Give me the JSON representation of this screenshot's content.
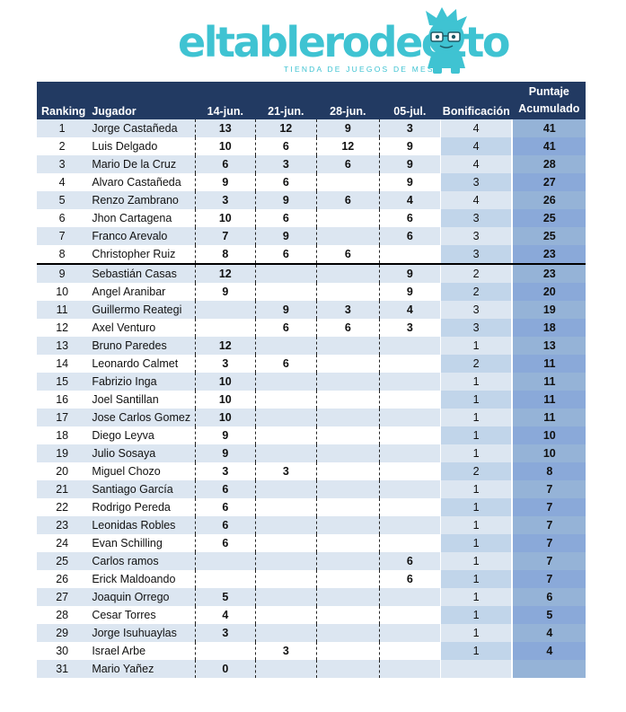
{
  "brand": {
    "name": "eltablerodeotto",
    "tagline": "TIENDA DE JUEGOS DE MESA",
    "color": "#3fc3d2"
  },
  "table": {
    "headers": {
      "ranking": "Ranking",
      "player": "Jugador",
      "d1": "14-jun.",
      "d2": "21-jun.",
      "d3": "28-jun.",
      "d4": "05-jul.",
      "bonus": "Bonificación",
      "total_line1": "Puntaje",
      "total_line2": "Acumulado"
    },
    "rows": [
      {
        "rank": "1",
        "name": "Jorge Castañeda",
        "d1": "13",
        "d2": "12",
        "d3": "9",
        "d4": "3",
        "bonus": "4",
        "total": "41"
      },
      {
        "rank": "2",
        "name": "Luis Delgado",
        "d1": "10",
        "d2": "6",
        "d3": "12",
        "d4": "9",
        "bonus": "4",
        "total": "41"
      },
      {
        "rank": "3",
        "name": "Mario De la Cruz",
        "d1": "6",
        "d2": "3",
        "d3": "6",
        "d4": "9",
        "bonus": "4",
        "total": "28"
      },
      {
        "rank": "4",
        "name": "Alvaro Castañeda",
        "d1": "9",
        "d2": "6",
        "d3": "",
        "d4": "9",
        "bonus": "3",
        "total": "27"
      },
      {
        "rank": "5",
        "name": "Renzo Zambrano",
        "d1": "3",
        "d2": "9",
        "d3": "6",
        "d4": "4",
        "bonus": "4",
        "total": "26"
      },
      {
        "rank": "6",
        "name": "Jhon Cartagena",
        "d1": "10",
        "d2": "6",
        "d3": "",
        "d4": "6",
        "bonus": "3",
        "total": "25"
      },
      {
        "rank": "7",
        "name": "Franco Arevalo",
        "d1": "7",
        "d2": "9",
        "d3": "",
        "d4": "6",
        "bonus": "3",
        "total": "25"
      },
      {
        "rank": "8",
        "name": "Christopher Ruiz",
        "d1": "8",
        "d2": "6",
        "d3": "6",
        "d4": "",
        "bonus": "3",
        "total": "23"
      },
      {
        "rank": "9",
        "name": "Sebastián Casas",
        "d1": "12",
        "d2": "",
        "d3": "",
        "d4": "9",
        "bonus": "2",
        "total": "23"
      },
      {
        "rank": "10",
        "name": "Angel Aranibar",
        "d1": "9",
        "d2": "",
        "d3": "",
        "d4": "9",
        "bonus": "2",
        "total": "20"
      },
      {
        "rank": "11",
        "name": "Guillermo Reategi",
        "d1": "",
        "d2": "9",
        "d3": "3",
        "d4": "4",
        "bonus": "3",
        "total": "19"
      },
      {
        "rank": "12",
        "name": "Axel Venturo",
        "d1": "",
        "d2": "6",
        "d3": "6",
        "d4": "3",
        "bonus": "3",
        "total": "18"
      },
      {
        "rank": "13",
        "name": "Bruno Paredes",
        "d1": "12",
        "d2": "",
        "d3": "",
        "d4": "",
        "bonus": "1",
        "total": "13"
      },
      {
        "rank": "14",
        "name": "Leonardo Calmet",
        "d1": "3",
        "d2": "6",
        "d3": "",
        "d4": "",
        "bonus": "2",
        "total": "11"
      },
      {
        "rank": "15",
        "name": "Fabrizio Inga",
        "d1": "10",
        "d2": "",
        "d3": "",
        "d4": "",
        "bonus": "1",
        "total": "11"
      },
      {
        "rank": "16",
        "name": "Joel Santillan",
        "d1": "10",
        "d2": "",
        "d3": "",
        "d4": "",
        "bonus": "1",
        "total": "11"
      },
      {
        "rank": "17",
        "name": "Jose Carlos Gomez",
        "d1": "10",
        "d2": "",
        "d3": "",
        "d4": "",
        "bonus": "1",
        "total": "11"
      },
      {
        "rank": "18",
        "name": "Diego Leyva",
        "d1": "9",
        "d2": "",
        "d3": "",
        "d4": "",
        "bonus": "1",
        "total": "10"
      },
      {
        "rank": "19",
        "name": "Julio Sosaya",
        "d1": "9",
        "d2": "",
        "d3": "",
        "d4": "",
        "bonus": "1",
        "total": "10"
      },
      {
        "rank": "20",
        "name": "Miguel Chozo",
        "d1": "3",
        "d2": "3",
        "d3": "",
        "d4": "",
        "bonus": "2",
        "total": "8"
      },
      {
        "rank": "21",
        "name": "Santiago García",
        "d1": "6",
        "d2": "",
        "d3": "",
        "d4": "",
        "bonus": "1",
        "total": "7"
      },
      {
        "rank": "22",
        "name": "Rodrigo Pereda",
        "d1": "6",
        "d2": "",
        "d3": "",
        "d4": "",
        "bonus": "1",
        "total": "7"
      },
      {
        "rank": "23",
        "name": "Leonidas Robles",
        "d1": "6",
        "d2": "",
        "d3": "",
        "d4": "",
        "bonus": "1",
        "total": "7"
      },
      {
        "rank": "24",
        "name": "Evan Schilling",
        "d1": "6",
        "d2": "",
        "d3": "",
        "d4": "",
        "bonus": "1",
        "total": "7"
      },
      {
        "rank": "25",
        "name": "Carlos ramos",
        "d1": "",
        "d2": "",
        "d3": "",
        "d4": "6",
        "bonus": "1",
        "total": "7"
      },
      {
        "rank": "26",
        "name": "Erick Maldoando",
        "d1": "",
        "d2": "",
        "d3": "",
        "d4": "6",
        "bonus": "1",
        "total": "7"
      },
      {
        "rank": "27",
        "name": "Joaquin Orrego",
        "d1": "5",
        "d2": "",
        "d3": "",
        "d4": "",
        "bonus": "1",
        "total": "6"
      },
      {
        "rank": "28",
        "name": "Cesar Torres",
        "d1": "4",
        "d2": "",
        "d3": "",
        "d4": "",
        "bonus": "1",
        "total": "5"
      },
      {
        "rank": "29",
        "name": "Jorge Isuhuaylas",
        "d1": "3",
        "d2": "",
        "d3": "",
        "d4": "",
        "bonus": "1",
        "total": "4"
      },
      {
        "rank": "30",
        "name": "Israel Arbe",
        "d1": "",
        "d2": "3",
        "d3": "",
        "d4": "",
        "bonus": "1",
        "total": "4"
      },
      {
        "rank": "31",
        "name": "Mario Yañez",
        "d1": "0",
        "d2": "",
        "d3": "",
        "d4": "",
        "bonus": "",
        "total": ""
      }
    ]
  }
}
